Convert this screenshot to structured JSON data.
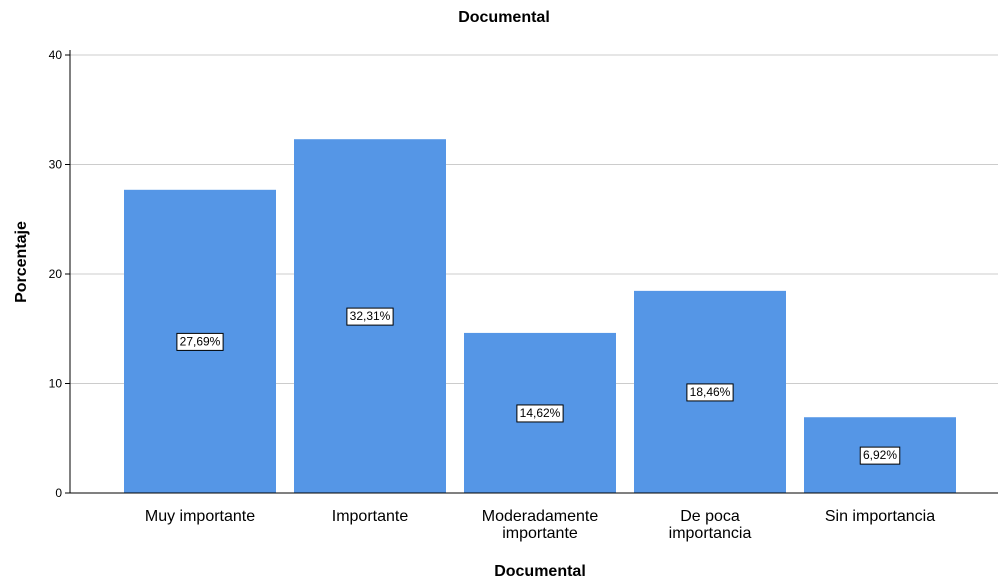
{
  "chart_data": {
    "type": "bar",
    "title": "Documental",
    "xlabel": "Documental",
    "ylabel": "Porcentaje",
    "categories": [
      [
        "Muy importante"
      ],
      [
        "Importante"
      ],
      [
        "Moderadamente",
        "importante"
      ],
      [
        "De poca",
        "importancia"
      ],
      [
        "Sin importancia"
      ]
    ],
    "values": [
      27.69,
      32.31,
      14.62,
      18.46,
      6.92
    ],
    "data_labels": [
      "27,69%",
      "32,31%",
      "14,62%",
      "18,46%",
      "6,92%"
    ],
    "ylim": [
      0,
      40
    ],
    "yticks": [
      0,
      10,
      20,
      30,
      40
    ],
    "grid": true,
    "legend": "none",
    "colors": {
      "bar": "#5596e6",
      "grid": "#cccccc",
      "axis": "#000000",
      "label_box_fill": "#ffffff",
      "label_box_stroke": "#000000"
    }
  }
}
